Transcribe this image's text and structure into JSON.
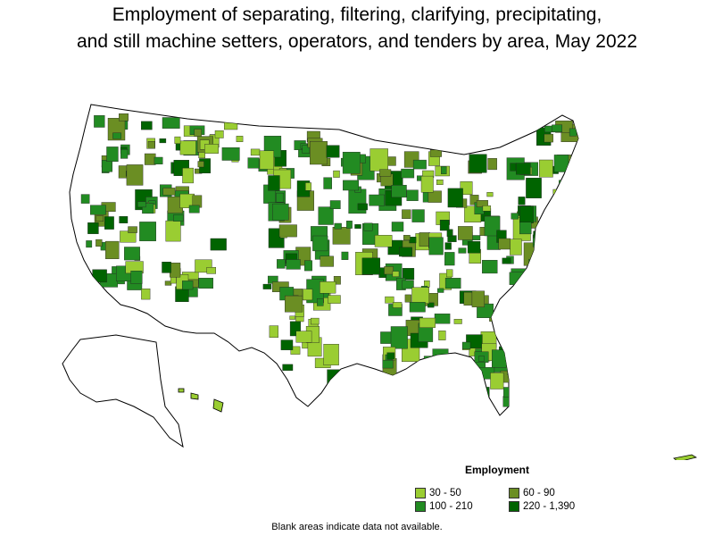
{
  "title": {
    "line1": "Employment of separating, filtering, clarifying, precipitating,",
    "line2": "and still machine setters, operators, and tenders by area, May 2022"
  },
  "legend": {
    "title": "Employment",
    "items": [
      {
        "label": "30 - 50",
        "color": "#9acd32"
      },
      {
        "label": "60 - 90",
        "color": "#6b8e23"
      },
      {
        "label": "100 - 210",
        "color": "#228b22"
      },
      {
        "label": "220 - 1,390",
        "color": "#006400"
      }
    ]
  },
  "footnote": "Blank areas indicate data not available.",
  "colors": {
    "no_data": "#ffffff",
    "border": "#000000"
  }
}
